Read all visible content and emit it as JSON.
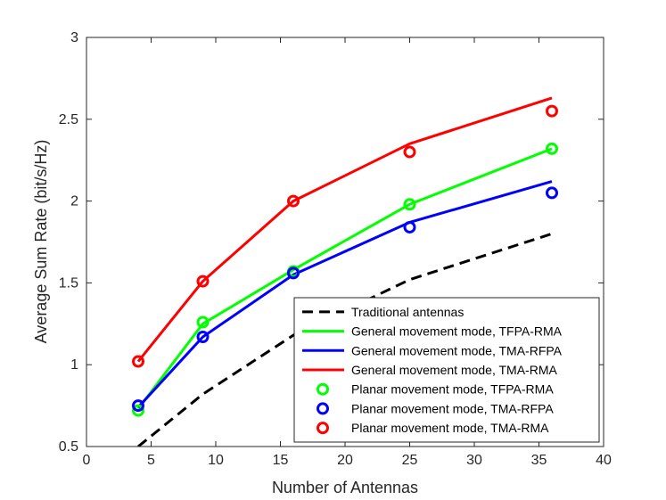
{
  "chart_data": {
    "type": "line",
    "title": "",
    "xlabel": "Number of Antennas",
    "ylabel": "Average Sum Rate (bit/s/Hz)",
    "xlim": [
      0,
      40
    ],
    "ylim": [
      0.5,
      3
    ],
    "xticks": [
      0,
      5,
      10,
      15,
      20,
      25,
      30,
      35,
      40
    ],
    "yticks": [
      0.5,
      1,
      1.5,
      2,
      2.5,
      3
    ],
    "ytick_labels": [
      "0.5",
      "1",
      "1.5",
      "2",
      "2.5",
      "3"
    ],
    "grid": false,
    "legend_position": "bottom-right",
    "x": [
      4,
      9,
      16,
      25,
      36
    ],
    "series": [
      {
        "name": "Traditional antennas",
        "style": "dashed-line",
        "color": "#000000",
        "x": [
          4,
          9,
          16,
          25,
          36
        ],
        "values": [
          0.5,
          0.82,
          1.18,
          1.52,
          1.8
        ]
      },
      {
        "name": "General movement mode, TFPA-RMA",
        "style": "line",
        "color": "#00ff00",
        "x": [
          4,
          9,
          16,
          25,
          36
        ],
        "values": [
          0.73,
          1.25,
          1.58,
          1.98,
          2.32
        ]
      },
      {
        "name": "General movement mode, TMA-RFPA",
        "style": "line",
        "color": "#0000ff",
        "x": [
          4,
          9,
          16,
          25,
          36
        ],
        "values": [
          0.74,
          1.17,
          1.55,
          1.87,
          2.12
        ]
      },
      {
        "name": "General movement mode, TMA-RMA",
        "style": "line",
        "color": "#ff0000",
        "x": [
          4,
          9,
          16,
          25,
          36
        ],
        "values": [
          1.02,
          1.51,
          2.0,
          2.35,
          2.63
        ]
      },
      {
        "name": "Planar movement mode,  TFPA-RMA",
        "style": "marker",
        "color": "#00ff00",
        "x": [
          4,
          9,
          16,
          25,
          36
        ],
        "values": [
          0.72,
          1.26,
          1.57,
          1.98,
          2.32
        ]
      },
      {
        "name": "Planar movement mode,  TMA-RFPA",
        "style": "marker",
        "color": "#0000ff",
        "x": [
          4,
          9,
          16,
          25,
          36
        ],
        "values": [
          0.75,
          1.17,
          1.56,
          1.84,
          2.05
        ]
      },
      {
        "name": "Planar movement mode,  TMA-RMA",
        "style": "marker",
        "color": "#ff0000",
        "x": [
          4,
          9,
          16,
          25,
          36
        ],
        "values": [
          1.02,
          1.51,
          2.0,
          2.3,
          2.55
        ]
      }
    ]
  }
}
